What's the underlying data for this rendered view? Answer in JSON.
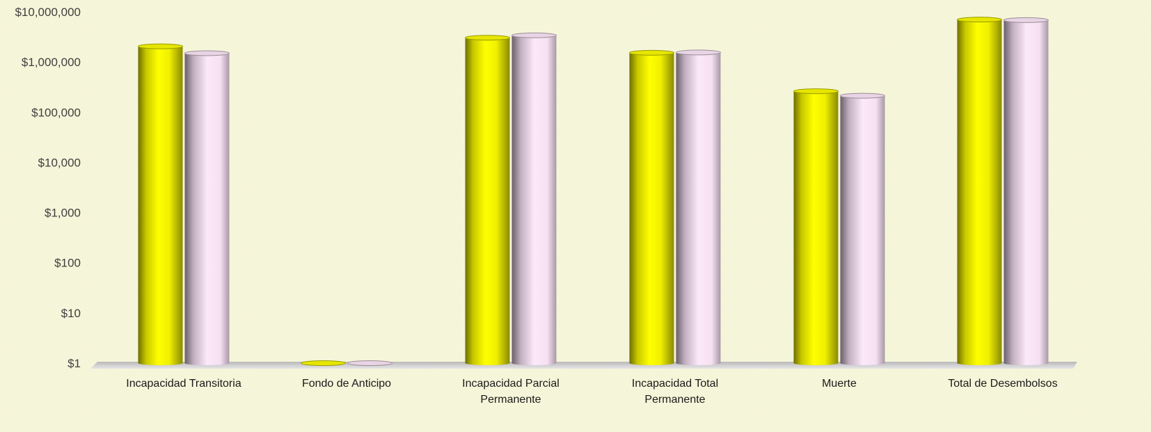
{
  "chart_data": {
    "type": "bar",
    "scale": "log",
    "y_tick_labels": [
      "$1",
      "$10",
      "$100",
      "$1,000",
      "$10,000",
      "$100,000",
      "$1,000,000",
      "$10,000,000"
    ],
    "ylim": [
      1,
      10000000
    ],
    "categories": [
      [
        "Incapacidad Transitoria"
      ],
      [
        "Fondo de Anticipo"
      ],
      [
        "Incapacidad Parcial",
        "Permanente"
      ],
      [
        "Incapacidad Total",
        "Permanente"
      ],
      [
        "Muerte"
      ],
      [
        "Total de Desembolsos"
      ]
    ],
    "series": [
      {
        "color": "#f2f200",
        "values": [
          2050000,
          1,
          3050000,
          1530000,
          262000,
          7000000
        ]
      },
      {
        "color": "#f3dcf0",
        "values": [
          1500000,
          1,
          3400000,
          1550000,
          213000,
          6850000
        ]
      }
    ],
    "grid": false,
    "legend": "none"
  }
}
